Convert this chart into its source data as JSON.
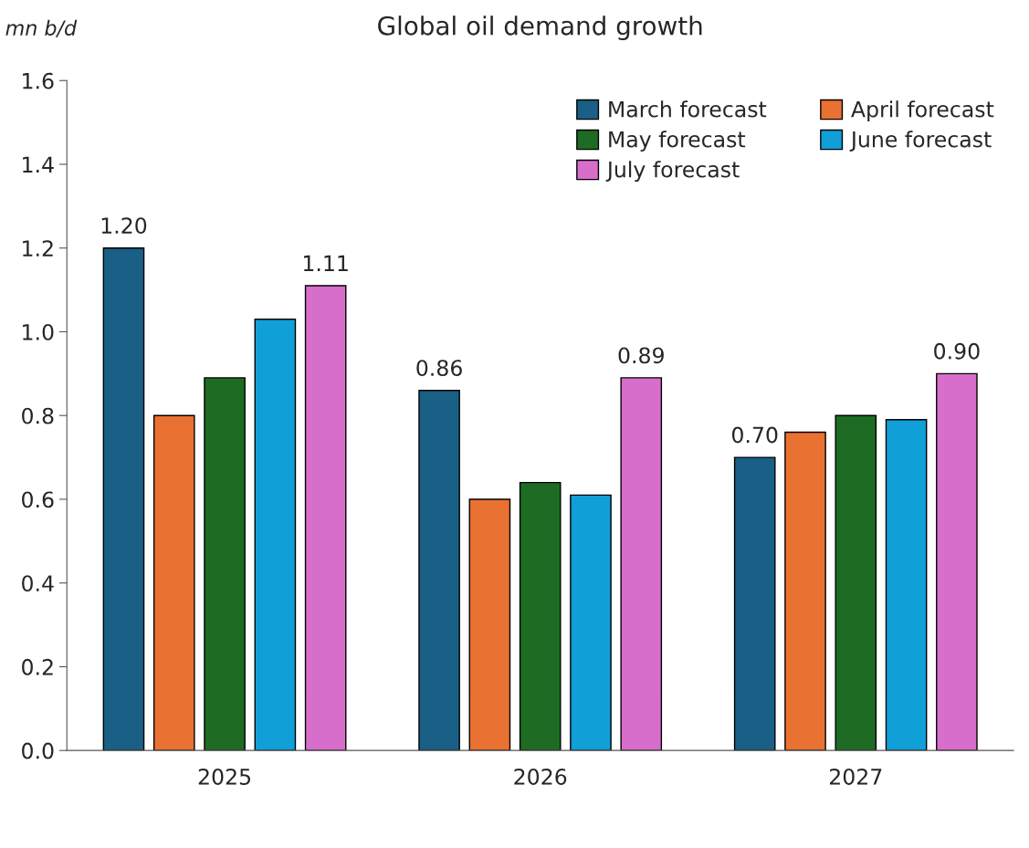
{
  "chart_data": {
    "type": "bar",
    "title": "Global oil demand growth",
    "ylabel": "mn b/d",
    "categories": [
      "2025",
      "2026",
      "2027"
    ],
    "series": [
      {
        "name": "March forecast",
        "color": "#1a5f85",
        "values": [
          1.2,
          0.86,
          0.7
        ],
        "value_labels": [
          "1.20",
          "0.86",
          "0.70"
        ]
      },
      {
        "name": "April forecast",
        "color": "#e97132",
        "values": [
          0.8,
          0.6,
          0.76
        ]
      },
      {
        "name": "May forecast",
        "color": "#1e6b24",
        "values": [
          0.89,
          0.64,
          0.8
        ]
      },
      {
        "name": "June forecast",
        "color": "#119fd8",
        "values": [
          1.03,
          0.61,
          0.79
        ]
      },
      {
        "name": "July forecast",
        "color": "#d86ecc",
        "values": [
          1.11,
          0.89,
          0.9
        ],
        "value_labels": [
          "1.11",
          "0.89",
          "0.90"
        ]
      }
    ],
    "ylim": [
      0.0,
      1.6
    ],
    "yticks": [
      {
        "value": 0,
        "label": "0.0"
      },
      0.2,
      0.4,
      0.6,
      0.8,
      {
        "value": 1,
        "label": "1.0"
      },
      1.2,
      1.4,
      1.6
    ],
    "grid": false,
    "legend": "top right"
  }
}
